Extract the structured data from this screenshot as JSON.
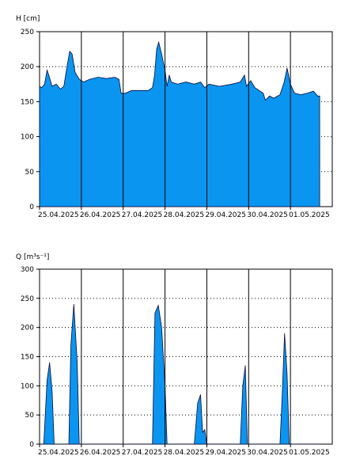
{
  "chart_data": [
    {
      "type": "area",
      "ylabel": "H [cm]",
      "ylim": [
        0,
        250
      ],
      "yticks": [
        0,
        50,
        100,
        150,
        200,
        250
      ],
      "x_range_days": [
        0,
        7
      ],
      "date_labels": [
        "25.04.2025",
        "26.04.2025",
        "27.04.2025",
        "28.04.2025",
        "29.04.2025",
        "30.04.2025",
        "01.05.2025"
      ],
      "day_boundaries": [
        1,
        2,
        3,
        4,
        5,
        6
      ],
      "grid": "horizontal-dotted",
      "color": "#0a95f0",
      "points": [
        [
          0.0,
          172
        ],
        [
          0.05,
          170
        ],
        [
          0.12,
          175
        ],
        [
          0.18,
          195
        ],
        [
          0.22,
          188
        ],
        [
          0.3,
          172
        ],
        [
          0.4,
          175
        ],
        [
          0.5,
          168
        ],
        [
          0.58,
          172
        ],
        [
          0.65,
          198
        ],
        [
          0.72,
          222
        ],
        [
          0.78,
          218
        ],
        [
          0.85,
          192
        ],
        [
          0.95,
          182
        ],
        [
          1.05,
          178
        ],
        [
          1.2,
          182
        ],
        [
          1.4,
          185
        ],
        [
          1.6,
          183
        ],
        [
          1.8,
          185
        ],
        [
          1.9,
          182
        ],
        [
          1.95,
          162
        ],
        [
          2.05,
          162
        ],
        [
          2.2,
          166
        ],
        [
          2.4,
          166
        ],
        [
          2.6,
          166
        ],
        [
          2.7,
          170
        ],
        [
          2.75,
          188
        ],
        [
          2.8,
          225
        ],
        [
          2.85,
          235
        ],
        [
          2.92,
          218
        ],
        [
          3.0,
          195
        ],
        [
          3.05,
          172
        ],
        [
          3.1,
          188
        ],
        [
          3.15,
          178
        ],
        [
          3.3,
          175
        ],
        [
          3.5,
          178
        ],
        [
          3.7,
          175
        ],
        [
          3.85,
          178
        ],
        [
          3.95,
          170
        ],
        [
          4.05,
          175
        ],
        [
          4.3,
          172
        ],
        [
          4.6,
          175
        ],
        [
          4.8,
          178
        ],
        [
          4.9,
          188
        ],
        [
          4.95,
          172
        ],
        [
          5.05,
          180
        ],
        [
          5.15,
          170
        ],
        [
          5.35,
          162
        ],
        [
          5.4,
          152
        ],
        [
          5.5,
          158
        ],
        [
          5.6,
          155
        ],
        [
          5.75,
          160
        ],
        [
          5.85,
          178
        ],
        [
          5.92,
          198
        ],
        [
          6.0,
          175
        ],
        [
          6.1,
          162
        ],
        [
          6.25,
          160
        ],
        [
          6.4,
          162
        ],
        [
          6.55,
          165
        ],
        [
          6.65,
          158
        ],
        [
          6.7,
          158
        ]
      ]
    },
    {
      "type": "area",
      "ylabel": "Q [m³s⁻¹]",
      "ylim": [
        0,
        300
      ],
      "yticks": [
        0,
        50,
        100,
        150,
        200,
        250,
        300
      ],
      "x_range_days": [
        0,
        7
      ],
      "date_labels": [
        "25.04.2025",
        "26.04.2025",
        "27.04.2025",
        "28.04.2025",
        "29.04.2025",
        "30.04.2025",
        "01.05.2025"
      ],
      "day_boundaries": [
        1,
        2,
        3,
        4,
        5,
        6
      ],
      "grid": "horizontal-dotted",
      "color": "#0a95f0",
      "points": [
        [
          0.0,
          0
        ],
        [
          0.1,
          0
        ],
        [
          0.18,
          110
        ],
        [
          0.24,
          140
        ],
        [
          0.3,
          90
        ],
        [
          0.35,
          0
        ],
        [
          0.7,
          0
        ],
        [
          0.75,
          170
        ],
        [
          0.82,
          240
        ],
        [
          0.9,
          140
        ],
        [
          0.95,
          0
        ],
        [
          2.0,
          0
        ],
        [
          2.7,
          0
        ],
        [
          2.76,
          225
        ],
        [
          2.84,
          238
        ],
        [
          2.92,
          200
        ],
        [
          3.0,
          100
        ],
        [
          3.05,
          0
        ],
        [
          3.7,
          0
        ],
        [
          3.78,
          70
        ],
        [
          3.85,
          85
        ],
        [
          3.9,
          20
        ],
        [
          3.95,
          25
        ],
        [
          4.0,
          0
        ],
        [
          4.8,
          0
        ],
        [
          4.86,
          100
        ],
        [
          4.92,
          135
        ],
        [
          4.97,
          0
        ],
        [
          5.75,
          0
        ],
        [
          5.8,
          80
        ],
        [
          5.86,
          190
        ],
        [
          5.92,
          120
        ],
        [
          5.97,
          0
        ],
        [
          6.7,
          0
        ]
      ]
    }
  ]
}
